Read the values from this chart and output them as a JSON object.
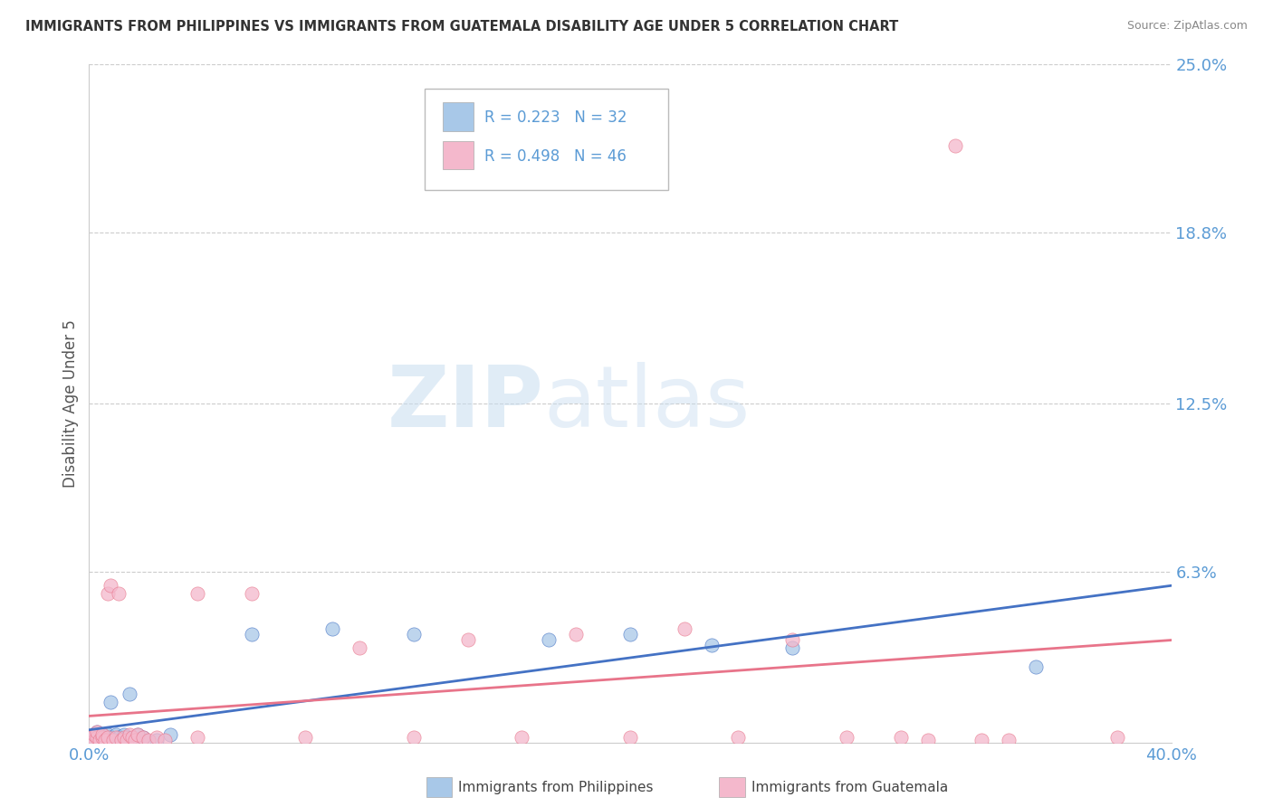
{
  "title": "IMMIGRANTS FROM PHILIPPINES VS IMMIGRANTS FROM GUATEMALA DISABILITY AGE UNDER 5 CORRELATION CHART",
  "source": "Source: ZipAtlas.com",
  "ylabel": "Disability Age Under 5",
  "xlim": [
    0.0,
    0.4
  ],
  "ylim": [
    0.0,
    0.25
  ],
  "xtick_positions": [
    0.0,
    0.4
  ],
  "xticklabels": [
    "0.0%",
    "40.0%"
  ],
  "ytick_positions": [
    0.063,
    0.125,
    0.188,
    0.25
  ],
  "ytick_labels": [
    "6.3%",
    "12.5%",
    "18.8%",
    "25.0%"
  ],
  "philippines_color": "#a8c8e8",
  "guatemala_color": "#f4b8cc",
  "philippines_line_color": "#4472c4",
  "guatemala_line_color": "#e8748a",
  "tick_color": "#5b9bd5",
  "legend_text_color": "#5b9bd5",
  "legend_label_philippines": "Immigrants from Philippines",
  "legend_label_guatemala": "Immigrants from Guatemala",
  "watermark_zip": "ZIP",
  "watermark_atlas": "atlas",
  "phil_x": [
    0.001,
    0.002,
    0.002,
    0.003,
    0.003,
    0.004,
    0.004,
    0.005,
    0.006,
    0.007,
    0.008,
    0.008,
    0.009,
    0.01,
    0.011,
    0.012,
    0.013,
    0.014,
    0.015,
    0.016,
    0.018,
    0.02,
    0.025,
    0.03,
    0.06,
    0.09,
    0.12,
    0.17,
    0.2,
    0.23,
    0.26,
    0.35
  ],
  "phil_y": [
    0.002,
    0.001,
    0.003,
    0.002,
    0.004,
    0.001,
    0.003,
    0.002,
    0.001,
    0.003,
    0.002,
    0.015,
    0.001,
    0.003,
    0.002,
    0.001,
    0.003,
    0.002,
    0.018,
    0.001,
    0.003,
    0.002,
    0.001,
    0.003,
    0.04,
    0.042,
    0.04,
    0.038,
    0.04,
    0.036,
    0.035,
    0.028
  ],
  "guat_x": [
    0.001,
    0.002,
    0.002,
    0.003,
    0.003,
    0.004,
    0.005,
    0.005,
    0.006,
    0.007,
    0.007,
    0.008,
    0.009,
    0.01,
    0.011,
    0.012,
    0.013,
    0.014,
    0.015,
    0.016,
    0.017,
    0.018,
    0.02,
    0.022,
    0.025,
    0.028,
    0.04,
    0.04,
    0.06,
    0.08,
    0.1,
    0.12,
    0.14,
    0.16,
    0.18,
    0.2,
    0.22,
    0.24,
    0.26,
    0.28,
    0.3,
    0.31,
    0.32,
    0.33,
    0.34,
    0.38
  ],
  "guat_y": [
    0.002,
    0.001,
    0.003,
    0.002,
    0.004,
    0.001,
    0.002,
    0.003,
    0.001,
    0.002,
    0.055,
    0.058,
    0.001,
    0.002,
    0.055,
    0.001,
    0.002,
    0.001,
    0.003,
    0.002,
    0.001,
    0.003,
    0.002,
    0.001,
    0.002,
    0.001,
    0.055,
    0.002,
    0.055,
    0.002,
    0.035,
    0.002,
    0.038,
    0.002,
    0.04,
    0.002,
    0.042,
    0.002,
    0.038,
    0.002,
    0.002,
    0.001,
    0.22,
    0.001,
    0.001,
    0.002
  ]
}
